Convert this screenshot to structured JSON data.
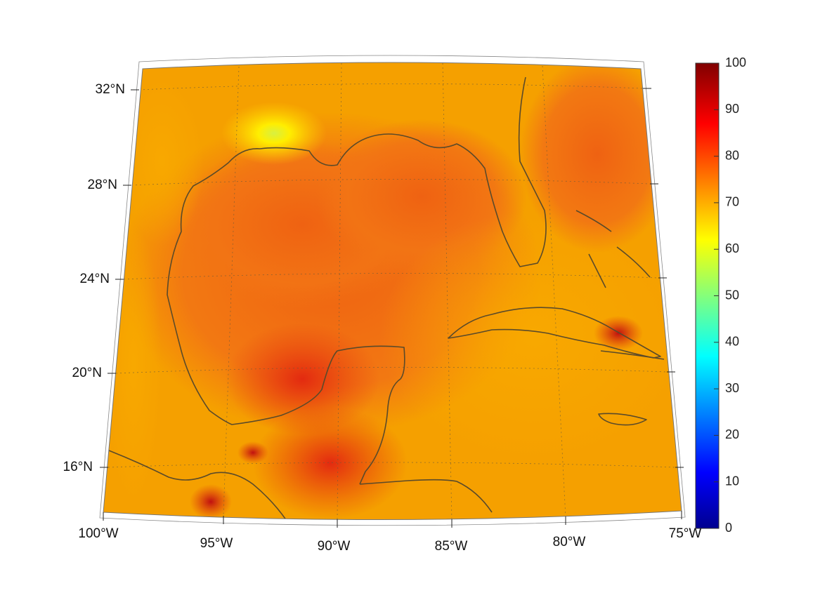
{
  "map": {
    "type": "heatmap-map",
    "region": "Gulf of Mexico and Caribbean",
    "lon_range": [
      -100,
      -75
    ],
    "lat_range": [
      14,
      33
    ],
    "lon_labels": [
      "100°W",
      "95°W",
      "90°W",
      "85°W",
      "80°W",
      "75°W"
    ],
    "lat_labels": [
      "32°N",
      "28°N",
      "24°N",
      "20°N",
      "16°N"
    ],
    "colormap": "jet",
    "colorbar": {
      "min": 0,
      "max": 100,
      "ticks": [
        "100",
        "90",
        "80",
        "70",
        "60",
        "50",
        "40",
        "30",
        "20",
        "10",
        "0"
      ]
    },
    "field_colors": {
      "background": "#f5a000",
      "gulf_interior": "#f27010",
      "hot_core": "#e63010",
      "yellow_plume": "#ffe000",
      "coast": "#5a4a2a"
    }
  }
}
